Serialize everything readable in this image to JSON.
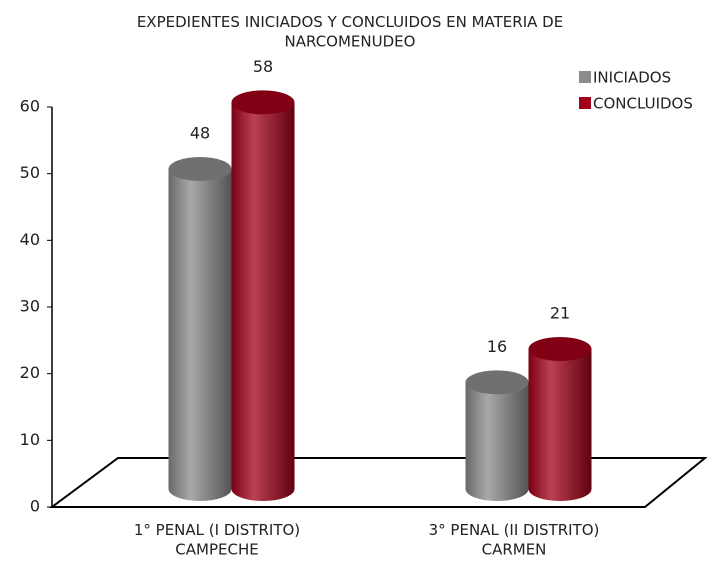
{
  "chart_data": {
    "type": "bar3d",
    "title": "EXPEDIENTES INICIADOS Y CONCLUIDOS EN MATERIA DE\nNARCOMENUDEO",
    "categories": [
      "1° PENAL (I DISTRITO)\nCAMPECHE",
      "3° PENAL (II DISTRITO)\nCARMEN"
    ],
    "series": [
      {
        "name": "INICIADOS",
        "color": "#8c8c8c",
        "values": [
          48,
          16
        ]
      },
      {
        "name": "CONCLUIDOS",
        "color": "#a30019",
        "values": [
          58,
          21
        ]
      }
    ],
    "ylim": [
      0,
      60
    ],
    "yticks": [
      0,
      10,
      20,
      30,
      40,
      50,
      60
    ],
    "legend": "upper right"
  }
}
